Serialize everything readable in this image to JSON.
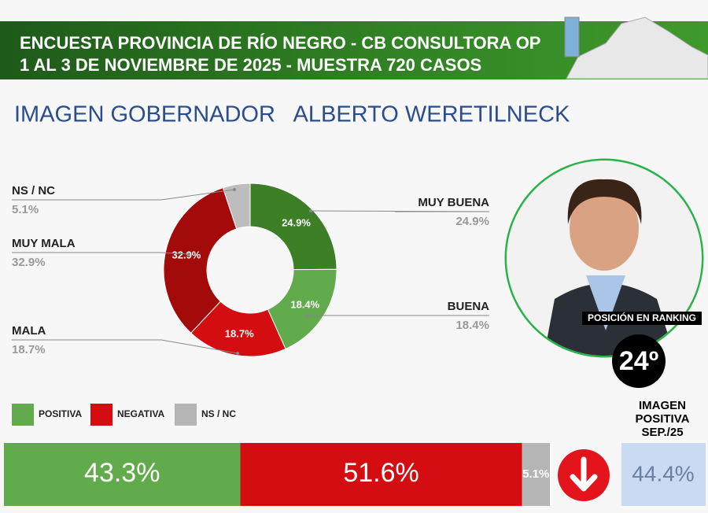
{
  "header": {
    "lines": [
      "ENCUESTA PROVINCIA DE RÍO NEGRO - CB CONSULTORA OP",
      "1 AL 3 DE NOVIEMBRE DE 2025 - MUESTRA 720 CASOS"
    ]
  },
  "chart_data": [
    {
      "type": "donut",
      "title": "IMAGEN GOBERNADOR   ALBERTO WERETILNECK",
      "categories": [
        "MUY BUENA",
        "BUENA",
        "MALA",
        "MUY MALA",
        "NS / NC"
      ],
      "values": [
        24.9,
        18.4,
        18.7,
        32.9,
        5.1
      ],
      "value_labels": [
        "24.9%",
        "18.4%",
        "18.7%",
        "32.9%",
        "5.1%"
      ],
      "colors": [
        "#3c7f26",
        "#62ab4c",
        "#d30d10",
        "#a30a0a",
        "#bdbdbd"
      ]
    },
    {
      "type": "bar",
      "orientation": "horizontal",
      "stacked": true,
      "xlim": [
        0,
        100
      ],
      "series": [
        {
          "name": "POSITIVA",
          "color": "#62ab4c",
          "values": [
            43.3
          ],
          "value_labels": [
            "43.3%"
          ]
        },
        {
          "name": "NEGATIVA",
          "color": "#d30d10",
          "values": [
            51.6
          ],
          "value_labels": [
            "51.6%"
          ]
        },
        {
          "name": "NS / NC",
          "color": "#b5b5b5",
          "values": [
            5.1
          ],
          "value_labels": [
            "5.1%"
          ]
        }
      ]
    }
  ],
  "ranking": {
    "label": "POSICIÓN EN RANKING",
    "position": "24º"
  },
  "comparison": {
    "title": [
      "IMAGEN",
      "POSITIVA",
      "SEP./25"
    ],
    "value": "44.4%"
  }
}
